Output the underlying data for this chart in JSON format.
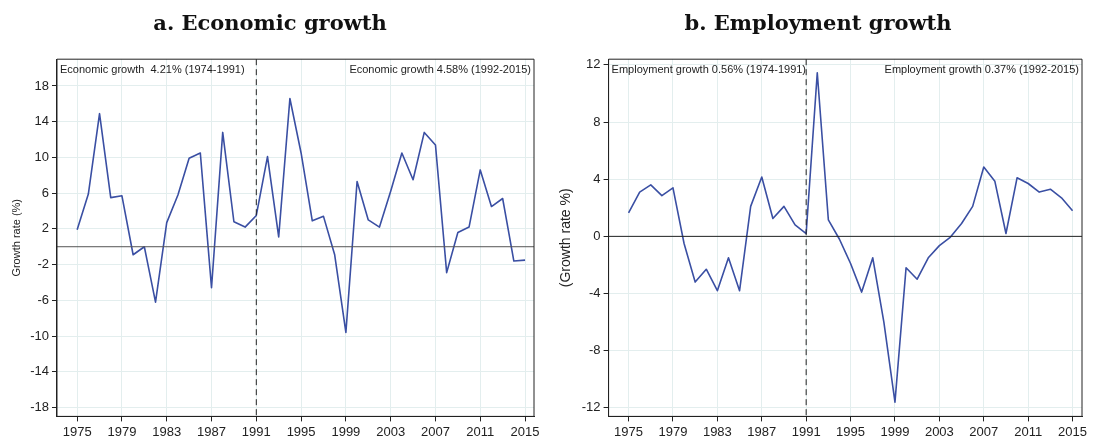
{
  "chart_data": [
    {
      "type": "line",
      "title": "a. Economic growth",
      "ylabel": "Growth rate (%)",
      "x": [
        1975,
        1976,
        1977,
        1978,
        1979,
        1980,
        1981,
        1982,
        1983,
        1984,
        1985,
        1986,
        1987,
        1988,
        1989,
        1990,
        1991,
        1992,
        1993,
        1994,
        1995,
        1996,
        1997,
        1998,
        1999,
        2000,
        2001,
        2002,
        2003,
        2004,
        2005,
        2006,
        2007,
        2008,
        2009,
        2010,
        2011,
        2012,
        2013,
        2014,
        2015
      ],
      "series": [
        {
          "color": "#3a4fa3",
          "values": [
            1.9,
            5.9,
            14.9,
            5.5,
            5.7,
            -0.9,
            0,
            -6.2,
            2.7,
            5.8,
            9.9,
            10.5,
            -4.6,
            12.8,
            2.8,
            2.2,
            3.5,
            10.1,
            1.1,
            16.6,
            10.5,
            2.9,
            3.4,
            -0.9,
            -9.6,
            7.3,
            3.0,
            2.2,
            6.2,
            10.5,
            7.5,
            12.8,
            11.4,
            -2.9,
            1.6,
            2.2,
            8.6,
            4.5,
            5.4,
            -1.6,
            -1.5
          ]
        }
      ],
      "xlim": [
        1973.2,
        2015.8
      ],
      "xticks": [
        1975,
        1979,
        1983,
        1987,
        1991,
        1995,
        1999,
        2003,
        2007,
        2011,
        2015
      ],
      "ylim": [
        -19,
        21
      ],
      "yticks": [
        -18,
        -14,
        -10,
        -6,
        -2,
        2,
        6,
        10,
        14,
        18
      ],
      "ref_lines": [
        {
          "axis": "y",
          "value": 0,
          "color": "#555555",
          "line_style": "solid"
        },
        {
          "axis": "x",
          "value": 1991,
          "color": "#222222",
          "line_style": "dashed"
        }
      ],
      "annotations": [
        "Economic growth  4.21% (1974-1991)",
        "Economic growth 4.58% (1992-2015)"
      ],
      "grid": true,
      "legend": false,
      "marker": "none",
      "line_style": "solid"
    },
    {
      "type": "line",
      "title": "b. Employment growth",
      "ylabel": "(Growth rate %)",
      "x": [
        1975,
        1976,
        1977,
        1978,
        1979,
        1980,
        1981,
        1982,
        1983,
        1984,
        1985,
        1986,
        1987,
        1988,
        1989,
        1990,
        1991,
        1992,
        1993,
        1994,
        1995,
        1996,
        1997,
        1998,
        1999,
        2000,
        2001,
        2002,
        2003,
        2004,
        2005,
        2006,
        2007,
        2008,
        2009,
        2010,
        2011,
        2012,
        2013,
        2014,
        2015
      ],
      "series": [
        {
          "color": "#3a4fa3",
          "values": [
            1.65,
            3.1,
            3.6,
            2.85,
            3.4,
            -0.5,
            -3.2,
            -2.3,
            -3.8,
            -1.5,
            -3.8,
            2.1,
            4.15,
            1.25,
            2.1,
            0.8,
            0.2,
            11.45,
            1.15,
            -0.2,
            -1.9,
            -3.9,
            -1.5,
            -6.0,
            -11.6,
            -2.2,
            -3.0,
            -1.5,
            -0.65,
            -0.05,
            0.9,
            2.1,
            4.85,
            3.85,
            0.2,
            4.1,
            3.7,
            3.1,
            3.3,
            2.7,
            1.8
          ]
        }
      ],
      "xlim": [
        1973.2,
        2015.85
      ],
      "xticks": [
        1975,
        1979,
        1983,
        1987,
        1991,
        1995,
        1999,
        2003,
        2007,
        2011,
        2015
      ],
      "ylim": [
        -12.6,
        12.4
      ],
      "yticks": [
        -12,
        -8,
        -4,
        0,
        4,
        8,
        12
      ],
      "ref_lines": [
        {
          "axis": "y",
          "value": 0,
          "color": "#222222",
          "line_style": "solid"
        },
        {
          "axis": "x",
          "value": 1991,
          "color": "#222222",
          "line_style": "dashed"
        }
      ],
      "annotations": [
        "Employment growth 0.56% (1974-1991)",
        "Employment growth 0.37% (1992-2015)"
      ],
      "grid": true,
      "legend": false,
      "marker": "none",
      "line_style": "solid"
    }
  ]
}
